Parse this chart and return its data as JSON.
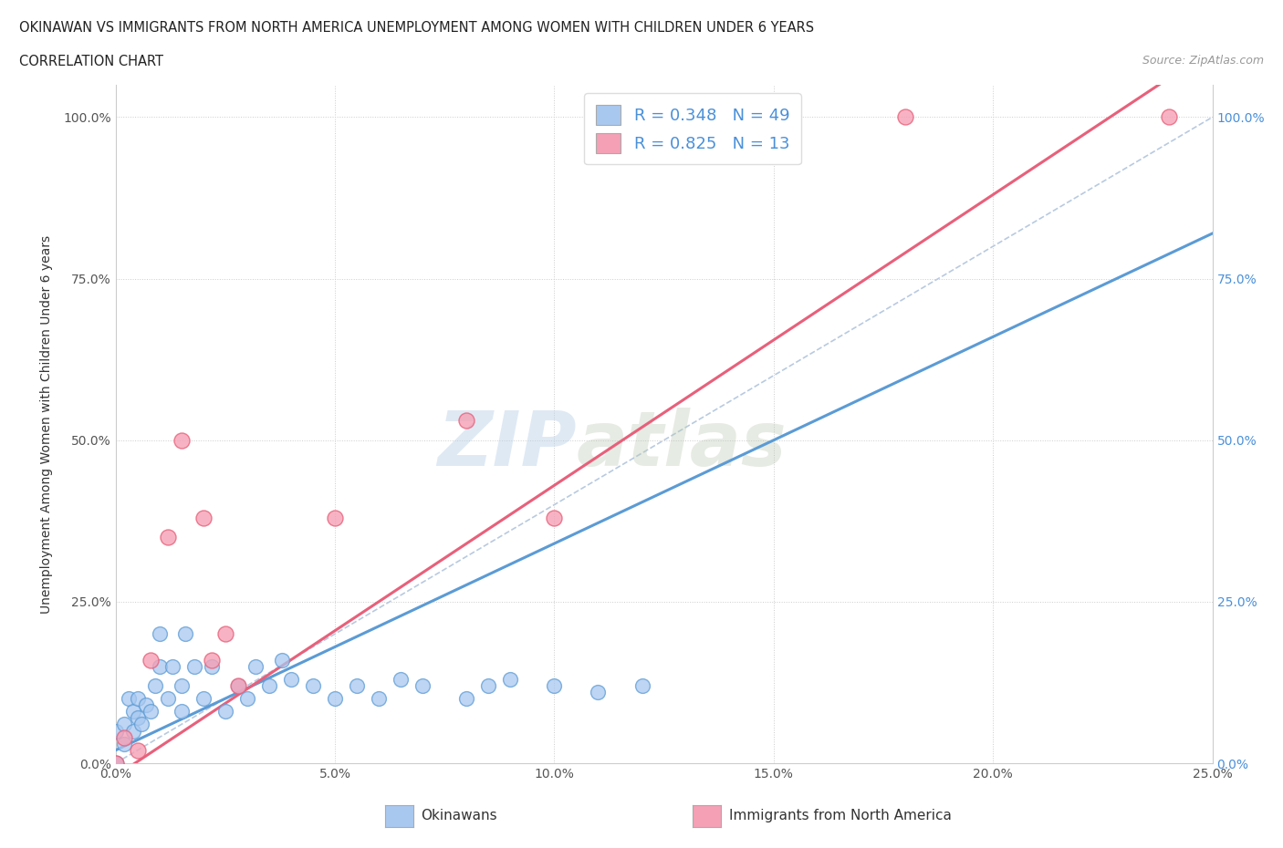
{
  "title_line1": "OKINAWAN VS IMMIGRANTS FROM NORTH AMERICA UNEMPLOYMENT AMONG WOMEN WITH CHILDREN UNDER 6 YEARS",
  "title_line2": "CORRELATION CHART",
  "source_text": "Source: ZipAtlas.com",
  "ylabel": "Unemployment Among Women with Children Under 6 years",
  "xlim": [
    0,
    0.25
  ],
  "ylim": [
    0,
    1.05
  ],
  "x_tick_labels": [
    "0.0%",
    "5.0%",
    "10.0%",
    "15.0%",
    "20.0%",
    "25.0%"
  ],
  "x_tick_vals": [
    0,
    0.05,
    0.1,
    0.15,
    0.2,
    0.25
  ],
  "y_tick_labels": [
    "0.0%",
    "25.0%",
    "50.0%",
    "75.0%",
    "100.0%"
  ],
  "y_tick_vals": [
    0,
    0.25,
    0.5,
    0.75,
    1.0
  ],
  "blue_color": "#A8C8F0",
  "pink_color": "#F5A0B5",
  "blue_line_color": "#5B9BD5",
  "pink_line_color": "#E8607A",
  "dashed_line_color": "#B0C4DE",
  "okinawan_x": [
    0.0,
    0.0,
    0.0,
    0.0,
    0.0,
    0.0,
    0.0,
    0.0,
    0.0,
    0.002,
    0.002,
    0.003,
    0.004,
    0.004,
    0.005,
    0.005,
    0.006,
    0.007,
    0.008,
    0.009,
    0.01,
    0.01,
    0.012,
    0.013,
    0.015,
    0.015,
    0.016,
    0.018,
    0.02,
    0.022,
    0.025,
    0.028,
    0.03,
    0.032,
    0.035,
    0.038,
    0.04,
    0.045,
    0.05,
    0.055,
    0.06,
    0.065,
    0.07,
    0.08,
    0.085,
    0.09,
    0.1,
    0.11,
    0.12
  ],
  "okinawan_y": [
    0.0,
    0.0,
    0.0,
    0.0,
    0.0,
    0.0,
    0.0,
    0.0,
    0.05,
    0.03,
    0.06,
    0.1,
    0.05,
    0.08,
    0.07,
    0.1,
    0.06,
    0.09,
    0.08,
    0.12,
    0.15,
    0.2,
    0.1,
    0.15,
    0.08,
    0.12,
    0.2,
    0.15,
    0.1,
    0.15,
    0.08,
    0.12,
    0.1,
    0.15,
    0.12,
    0.16,
    0.13,
    0.12,
    0.1,
    0.12,
    0.1,
    0.13,
    0.12,
    0.1,
    0.12,
    0.13,
    0.12,
    0.11,
    0.12
  ],
  "immigrant_x": [
    0.0,
    0.002,
    0.005,
    0.008,
    0.012,
    0.015,
    0.02,
    0.022,
    0.025,
    0.028,
    0.05,
    0.08,
    0.1,
    0.18,
    0.24
  ],
  "immigrant_y": [
    0.0,
    0.04,
    0.02,
    0.16,
    0.35,
    0.5,
    0.38,
    0.16,
    0.2,
    0.12,
    0.38,
    0.53,
    0.38,
    1.0,
    1.0
  ],
  "watermark_zip": "ZIP",
  "watermark_atlas": "atlas"
}
